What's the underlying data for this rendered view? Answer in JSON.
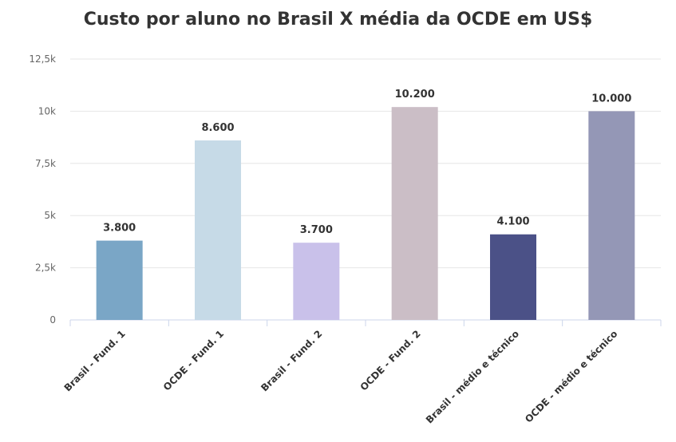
{
  "chart_data": {
    "type": "bar",
    "title": "Custo por aluno no Brasil X média da OCDE em US$",
    "categories": [
      "Brasil - Fund. 1",
      "OCDE - Fund. 1",
      "Brasil - Fund. 2",
      "OCDE - Fund. 2",
      "Brasil - médio e técnico",
      "OCDE - médio e técnico"
    ],
    "values": [
      3800,
      8600,
      3700,
      10200,
      4100,
      10000
    ],
    "data_labels": [
      "3.800",
      "8.600",
      "3.700",
      "10.200",
      "4.100",
      "10.000"
    ],
    "colors": [
      "#7aa6c6",
      "#c6dae7",
      "#c9c1ea",
      "#cbbec6",
      "#4b5187",
      "#9497b6"
    ],
    "ylim": [
      0,
      12500
    ],
    "yticks": [
      0,
      2500,
      5000,
      7500,
      10000,
      12500
    ],
    "ytick_labels": [
      "0",
      "2,5k",
      "5k",
      "7,5k",
      "10k",
      "12,5k"
    ],
    "grid": true,
    "legend": "none"
  }
}
